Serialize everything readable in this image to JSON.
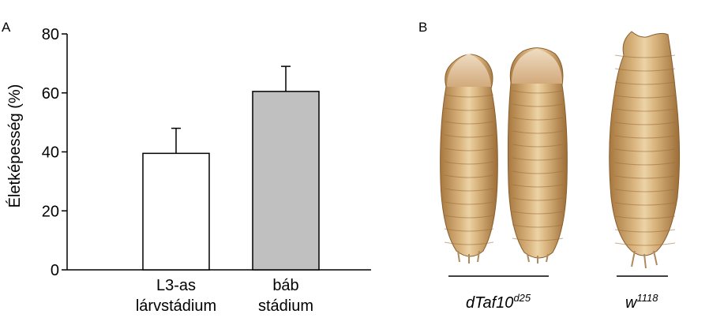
{
  "panel_a_label": "A",
  "panel_b_label": "B",
  "chart_data": {
    "type": "bar",
    "categories": [
      [
        "L3-as",
        "lárvstádium"
      ],
      [
        "báb",
        "stádium"
      ]
    ],
    "values": [
      39.5,
      60.5
    ],
    "errors": [
      8.5,
      8.5
    ],
    "ylabel": "Életképesség (%)",
    "ylim": [
      0,
      80
    ],
    "yticks": [
      0,
      20,
      40,
      60,
      80
    ],
    "bar_colors": [
      "#ffffff",
      "#c0c0c0"
    ],
    "grid": false,
    "legend": "none"
  },
  "photo": {
    "group_labels": [
      {
        "base": "dTaf10",
        "sup": "d25"
      },
      {
        "base": "w",
        "sup": "1118"
      }
    ],
    "body_color": "#c9a06a",
    "head_color": "#e3c9a8"
  }
}
